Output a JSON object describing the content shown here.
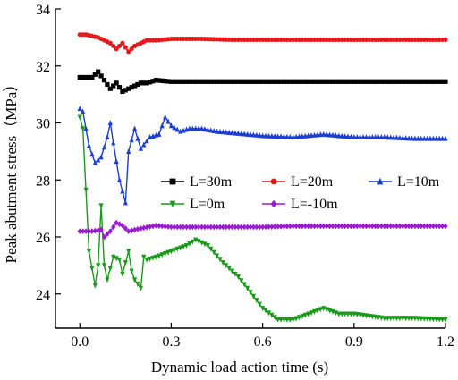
{
  "chart_data": {
    "type": "line",
    "title": "",
    "xlabel": "Dynamic load action time (s)",
    "ylabel": "Peak abutment stress（MPa）",
    "xlim": [
      -0.08,
      1.2
    ],
    "ylim": [
      22.8,
      34
    ],
    "xticks": [
      "0.0",
      "0.3",
      "0.6",
      "0.9",
      "1.2"
    ],
    "yticks": [
      "24",
      "26",
      "28",
      "30",
      "32",
      "34"
    ],
    "legend_position": "center-right",
    "series": [
      {
        "name": "L=30m",
        "color": "#000000",
        "marker": "square",
        "x": [
          0,
          0.02,
          0.04,
          0.06,
          0.08,
          0.1,
          0.12,
          0.14,
          0.16,
          0.18,
          0.2,
          0.22,
          0.25,
          0.3,
          0.4,
          0.5,
          0.6,
          0.7,
          0.8,
          0.9,
          1.0,
          1.1,
          1.2
        ],
        "y": [
          31.6,
          31.6,
          31.6,
          31.8,
          31.5,
          31.2,
          31.4,
          31.1,
          31.2,
          31.3,
          31.4,
          31.4,
          31.5,
          31.45,
          31.45,
          31.45,
          31.45,
          31.45,
          31.45,
          31.45,
          31.45,
          31.45,
          31.45
        ]
      },
      {
        "name": "L=20m",
        "color": "#e41a1c",
        "marker": "circle",
        "x": [
          0,
          0.02,
          0.04,
          0.06,
          0.08,
          0.1,
          0.12,
          0.14,
          0.16,
          0.18,
          0.2,
          0.22,
          0.25,
          0.3,
          0.4,
          0.5,
          0.6,
          0.7,
          0.8,
          0.9,
          1.0,
          1.1,
          1.2
        ],
        "y": [
          33.1,
          33.1,
          33.05,
          33.0,
          32.9,
          32.8,
          32.6,
          32.8,
          32.5,
          32.7,
          32.8,
          32.9,
          32.9,
          32.95,
          32.95,
          32.92,
          32.92,
          32.92,
          32.92,
          32.92,
          32.92,
          32.92,
          32.92
        ]
      },
      {
        "name": "L=10m",
        "color": "#1c3fd1",
        "marker": "triangle-up",
        "x": [
          0,
          0.01,
          0.03,
          0.05,
          0.07,
          0.09,
          0.1,
          0.11,
          0.13,
          0.15,
          0.16,
          0.18,
          0.2,
          0.23,
          0.26,
          0.28,
          0.3,
          0.33,
          0.36,
          0.4,
          0.45,
          0.5,
          0.6,
          0.7,
          0.8,
          0.9,
          1.0,
          1.1,
          1.2
        ],
        "y": [
          30.5,
          30.4,
          29.2,
          28.6,
          28.8,
          29.5,
          30.0,
          29.3,
          28.0,
          27.2,
          29.0,
          29.8,
          29.1,
          29.5,
          29.6,
          30.2,
          29.9,
          29.7,
          29.8,
          29.8,
          29.7,
          29.65,
          29.55,
          29.5,
          29.6,
          29.5,
          29.5,
          29.45,
          29.45
        ]
      },
      {
        "name": "L=0m",
        "color": "#1a9a1a",
        "marker": "triangle-down",
        "x": [
          0,
          0.01,
          0.03,
          0.05,
          0.06,
          0.07,
          0.08,
          0.09,
          0.11,
          0.13,
          0.14,
          0.16,
          0.17,
          0.18,
          0.2,
          0.21,
          0.22,
          0.25,
          0.3,
          0.35,
          0.38,
          0.42,
          0.47,
          0.52,
          0.55,
          0.6,
          0.65,
          0.7,
          0.75,
          0.8,
          0.85,
          0.9,
          1.0,
          1.1,
          1.2
        ],
        "y": [
          30.2,
          29.8,
          25.5,
          24.3,
          25.0,
          27.1,
          25.0,
          24.5,
          25.3,
          25.2,
          24.7,
          25.5,
          24.8,
          24.5,
          24.2,
          25.3,
          25.2,
          25.3,
          25.5,
          25.7,
          25.9,
          25.7,
          25.1,
          24.6,
          24.2,
          23.5,
          23.1,
          23.1,
          23.3,
          23.5,
          23.3,
          23.3,
          23.15,
          23.15,
          23.1
        ]
      },
      {
        "name": "L=-10m",
        "color": "#9b1bd1",
        "marker": "diamond",
        "x": [
          0,
          0.04,
          0.07,
          0.08,
          0.1,
          0.12,
          0.14,
          0.16,
          0.2,
          0.25,
          0.3,
          0.4,
          0.5,
          0.6,
          0.7,
          0.8,
          0.9,
          1.0,
          1.1,
          1.2
        ],
        "y": [
          26.2,
          26.2,
          26.25,
          26.0,
          26.2,
          26.5,
          26.4,
          26.2,
          26.3,
          26.4,
          26.35,
          26.35,
          26.35,
          26.35,
          26.38,
          26.38,
          26.38,
          26.38,
          26.38,
          26.38
        ]
      }
    ]
  }
}
